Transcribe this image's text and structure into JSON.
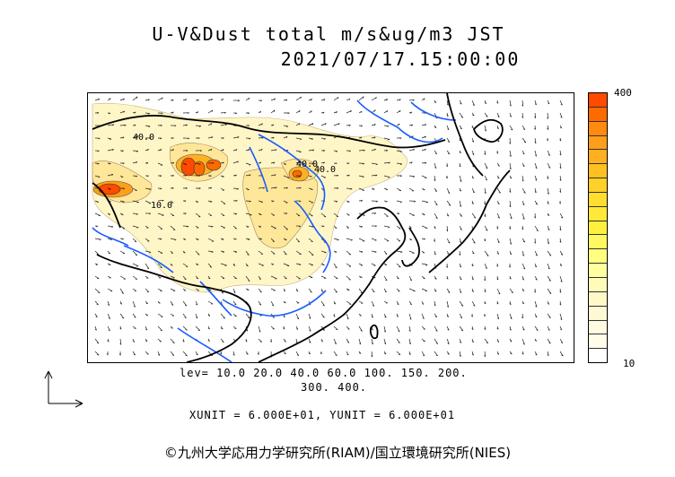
{
  "title": "U-V&Dust total m/s&ug/m3 JST",
  "timestamp": "2021/07/17.15:00:00",
  "colorbar": {
    "max_label": "400",
    "min_label": "10",
    "colors": [
      "#ff4a00",
      "#ff6a00",
      "#ff8a10",
      "#ff9e18",
      "#ffb020",
      "#ffc020",
      "#ffd028",
      "#ffde30",
      "#ffe838",
      "#fff040",
      "#fff860",
      "#ffff80",
      "#ffffa0",
      "#fffbb8",
      "#fff8c8",
      "#fff8d4",
      "#fffbe0",
      "#fffdea",
      "#ffffff"
    ]
  },
  "contour_labels": [
    "40.0",
    "10.0",
    "40.0",
    "40.0"
  ],
  "lev_line1": "lev= 10.0 20.0 40.0 60.0 100. 150. 200.",
  "lev_line2": "300. 400.",
  "units_line": "XUNIT = 6.000E+01, YUNIT = 6.000E+01",
  "credit": "©九州大学応用力学研究所(RIAM)/国立環境研究所(NIES)",
  "map": {
    "region": "East Asia",
    "wind_vectors": true,
    "coastline_color": "#000000",
    "river_color": "#1a5cff",
    "dust_color_light": "#fff6c8",
    "dust_color_mid": "#ffe79a",
    "dust_color_high": "#ff5a1a"
  }
}
